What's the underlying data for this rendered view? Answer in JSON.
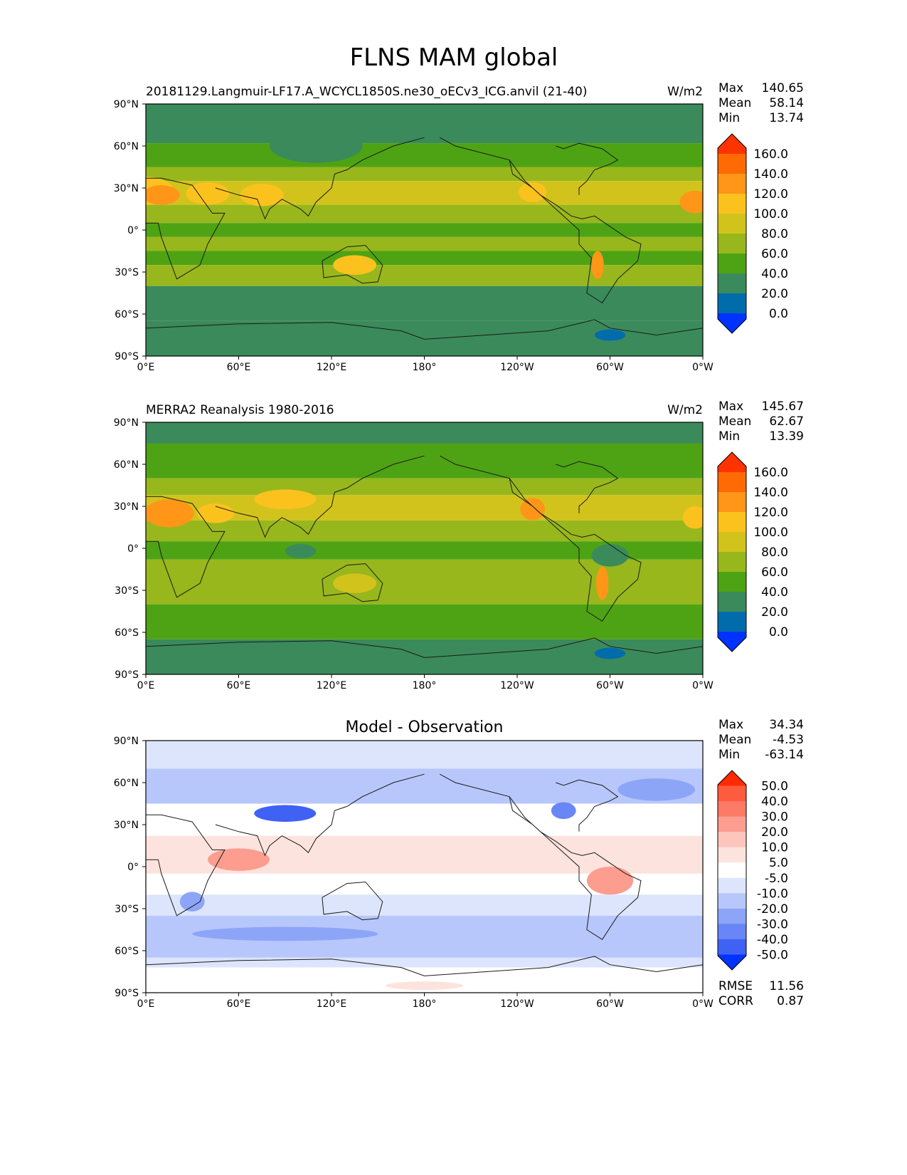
{
  "figure_title": "FLNS MAM global",
  "chart_data": [
    {
      "type": "heatmap",
      "title": "20181129.Langmuir-LF17.A_WCYCL1850S.ne30_oECv3_ICG.anvil (21-40)",
      "units": "W/m2",
      "x_ticks": [
        "0°E",
        "60°E",
        "120°E",
        "180°",
        "120°W",
        "60°W",
        "0°W"
      ],
      "y_ticks": [
        "90°N",
        "60°N",
        "30°N",
        "0°",
        "30°S",
        "60°S",
        "90°S"
      ],
      "xlim": [
        0,
        360
      ],
      "ylim": [
        -90,
        90
      ],
      "stats": [
        {
          "label": "Max",
          "value": "140.65"
        },
        {
          "label": "Mean",
          "value": "58.14"
        },
        {
          "label": "Min",
          "value": "13.74"
        }
      ],
      "colorbar": {
        "labels": [
          "160.0",
          "140.0",
          "120.0",
          "100.0",
          "80.0",
          "60.0",
          "40.0",
          "20.0",
          "0.0"
        ],
        "colors": [
          "#ff3300",
          "#ff6a05",
          "#ff9618",
          "#fbc21e",
          "#d2c31c",
          "#98b71c",
          "#4ea314",
          "#3b8a5b",
          "#006cac",
          "#0033ff"
        ]
      },
      "bands": [
        {
          "lat": [
            90,
            62
          ],
          "color": "#3b8a5b"
        },
        {
          "lat": [
            62,
            45
          ],
          "color": "#4ea314"
        },
        {
          "lat": [
            45,
            35
          ],
          "color": "#98b71c"
        },
        {
          "lat": [
            35,
            18
          ],
          "color": "#d2c31c"
        },
        {
          "lat": [
            18,
            5
          ],
          "color": "#98b71c"
        },
        {
          "lat": [
            5,
            -5
          ],
          "color": "#4ea314"
        },
        {
          "lat": [
            -5,
            -15
          ],
          "color": "#98b71c"
        },
        {
          "lat": [
            -15,
            -25
          ],
          "color": "#4ea314"
        },
        {
          "lat": [
            -25,
            -40
          ],
          "color": "#98b71c"
        },
        {
          "lat": [
            -40,
            -65
          ],
          "color": "#3b8a5b"
        },
        {
          "lat": [
            -65,
            -90
          ],
          "color": "#3b8a5b"
        }
      ],
      "patches": [
        {
          "lon": 0,
          "lat": 28,
          "rx": 18,
          "ry": 10,
          "color": "#fbc21e"
        },
        {
          "lon": 10,
          "lat": 25,
          "rx": 12,
          "ry": 7,
          "color": "#ff9618"
        },
        {
          "lon": 40,
          "lat": 26,
          "rx": 14,
          "ry": 8,
          "color": "#fbc21e"
        },
        {
          "lon": 75,
          "lat": 25,
          "rx": 14,
          "ry": 8,
          "color": "#fbc21e"
        },
        {
          "lon": 135,
          "lat": -25,
          "rx": 14,
          "ry": 7,
          "color": "#fbc21e"
        },
        {
          "lon": 250,
          "lat": 27,
          "rx": 9,
          "ry": 7,
          "color": "#fbc21e"
        },
        {
          "lon": 292,
          "lat": -25,
          "rx": 4,
          "ry": 10,
          "color": "#ff9618"
        },
        {
          "lon": 355,
          "lat": 20,
          "rx": 10,
          "ry": 8,
          "color": "#ff9618"
        },
        {
          "lon": 110,
          "lat": 60,
          "rx": 30,
          "ry": 12,
          "color": "#3b8a5b"
        },
        {
          "lon": 300,
          "lat": -75,
          "rx": 10,
          "ry": 4,
          "color": "#006cac"
        }
      ]
    },
    {
      "type": "heatmap",
      "title": "MERRA2 Reanalysis 1980-2016",
      "units": "W/m2",
      "x_ticks": [
        "0°E",
        "60°E",
        "120°E",
        "180°",
        "120°W",
        "60°W",
        "0°W"
      ],
      "y_ticks": [
        "90°N",
        "60°N",
        "30°N",
        "0°",
        "30°S",
        "60°S",
        "90°S"
      ],
      "xlim": [
        0,
        360
      ],
      "ylim": [
        -90,
        90
      ],
      "stats": [
        {
          "label": "Max",
          "value": "145.67"
        },
        {
          "label": "Mean",
          "value": "62.67"
        },
        {
          "label": "Min",
          "value": "13.39"
        }
      ],
      "colorbar": {
        "labels": [
          "160.0",
          "140.0",
          "120.0",
          "100.0",
          "80.0",
          "60.0",
          "40.0",
          "20.0",
          "0.0"
        ],
        "colors": [
          "#ff3300",
          "#ff6a05",
          "#ff9618",
          "#fbc21e",
          "#d2c31c",
          "#98b71c",
          "#4ea314",
          "#3b8a5b",
          "#006cac",
          "#0033ff"
        ]
      },
      "bands": [
        {
          "lat": [
            90,
            75
          ],
          "color": "#3b8a5b"
        },
        {
          "lat": [
            75,
            50
          ],
          "color": "#4ea314"
        },
        {
          "lat": [
            50,
            38
          ],
          "color": "#98b71c"
        },
        {
          "lat": [
            38,
            20
          ],
          "color": "#d2c31c"
        },
        {
          "lat": [
            20,
            5
          ],
          "color": "#98b71c"
        },
        {
          "lat": [
            5,
            -8
          ],
          "color": "#4ea314"
        },
        {
          "lat": [
            -8,
            -40
          ],
          "color": "#98b71c"
        },
        {
          "lat": [
            -40,
            -65
          ],
          "color": "#4ea314"
        },
        {
          "lat": [
            -65,
            -90
          ],
          "color": "#3b8a5b"
        }
      ],
      "patches": [
        {
          "lon": 15,
          "lat": 25,
          "rx": 16,
          "ry": 10,
          "color": "#ff9618"
        },
        {
          "lon": 45,
          "lat": 25,
          "rx": 12,
          "ry": 7,
          "color": "#fbc21e"
        },
        {
          "lon": 90,
          "lat": 35,
          "rx": 20,
          "ry": 7,
          "color": "#fbc21e"
        },
        {
          "lon": 135,
          "lat": -25,
          "rx": 14,
          "ry": 7,
          "color": "#d2c31c"
        },
        {
          "lon": 250,
          "lat": 28,
          "rx": 8,
          "ry": 8,
          "color": "#ff9618"
        },
        {
          "lon": 295,
          "lat": -25,
          "rx": 4,
          "ry": 12,
          "color": "#ff9618"
        },
        {
          "lon": 300,
          "lat": -5,
          "rx": 12,
          "ry": 8,
          "color": "#3b8a5b"
        },
        {
          "lon": 355,
          "lat": 22,
          "rx": 8,
          "ry": 8,
          "color": "#fbc21e"
        },
        {
          "lon": 100,
          "lat": -2,
          "rx": 10,
          "ry": 5,
          "color": "#3b8a5b"
        },
        {
          "lon": 300,
          "lat": -75,
          "rx": 10,
          "ry": 4,
          "color": "#006cac"
        }
      ]
    },
    {
      "type": "heatmap",
      "title": "Model - Observation",
      "units": "",
      "x_ticks": [
        "0°E",
        "60°E",
        "120°E",
        "180°",
        "120°W",
        "60°W",
        "0°W"
      ],
      "y_ticks": [
        "90°N",
        "60°N",
        "30°N",
        "0°",
        "30°S",
        "60°S",
        "90°S"
      ],
      "xlim": [
        0,
        360
      ],
      "ylim": [
        -90,
        90
      ],
      "stats": [
        {
          "label": "Max",
          "value": "34.34"
        },
        {
          "label": "Mean",
          "value": "-4.53"
        },
        {
          "label": "Min",
          "value": "-63.14"
        }
      ],
      "extra_stats": [
        {
          "label": "RMSE",
          "value": "11.56"
        },
        {
          "label": "CORR",
          "value": "0.87"
        }
      ],
      "colorbar": {
        "labels": [
          "50.0",
          "40.0",
          "30.0",
          "20.0",
          "10.0",
          "5.0",
          "-5.0",
          "-10.0",
          "-20.0",
          "-30.0",
          "-40.0",
          "-50.0"
        ],
        "colors": [
          "#ff2a00",
          "#ff5c3d",
          "#fc7a66",
          "#fc9d90",
          "#fdc6bd",
          "#fde3de",
          "#ffffff",
          "#dde5fd",
          "#b8c7fb",
          "#8da5f7",
          "#6886f5",
          "#3f62f5",
          "#0033ff"
        ]
      },
      "bands": [
        {
          "lat": [
            90,
            70
          ],
          "color": "#dde5fd"
        },
        {
          "lat": [
            70,
            45
          ],
          "color": "#b8c7fb"
        },
        {
          "lat": [
            45,
            22
          ],
          "color": "#ffffff"
        },
        {
          "lat": [
            22,
            -5
          ],
          "color": "#fde3de"
        },
        {
          "lat": [
            -5,
            -20
          ],
          "color": "#ffffff"
        },
        {
          "lat": [
            -20,
            -35
          ],
          "color": "#dde5fd"
        },
        {
          "lat": [
            -35,
            -65
          ],
          "color": "#b8c7fb"
        },
        {
          "lat": [
            -65,
            -72
          ],
          "color": "#dde5fd"
        },
        {
          "lat": [
            -72,
            -90
          ],
          "color": "#ffffff"
        }
      ],
      "patches": [
        {
          "lon": 90,
          "lat": 38,
          "rx": 20,
          "ry": 6,
          "color": "#3f62f5"
        },
        {
          "lon": 270,
          "lat": 40,
          "rx": 8,
          "ry": 6,
          "color": "#6886f5"
        },
        {
          "lon": 330,
          "lat": 55,
          "rx": 25,
          "ry": 8,
          "color": "#8da5f7"
        },
        {
          "lon": 60,
          "lat": 5,
          "rx": 20,
          "ry": 8,
          "color": "#fc9d90"
        },
        {
          "lon": 300,
          "lat": -10,
          "rx": 15,
          "ry": 10,
          "color": "#fc9d90"
        },
        {
          "lon": 90,
          "lat": -48,
          "rx": 60,
          "ry": 5,
          "color": "#8da5f7"
        },
        {
          "lon": 30,
          "lat": -25,
          "rx": 8,
          "ry": 7,
          "color": "#8da5f7"
        },
        {
          "lon": 180,
          "lat": -85,
          "rx": 25,
          "ry": 3,
          "color": "#fde3de"
        }
      ]
    }
  ]
}
